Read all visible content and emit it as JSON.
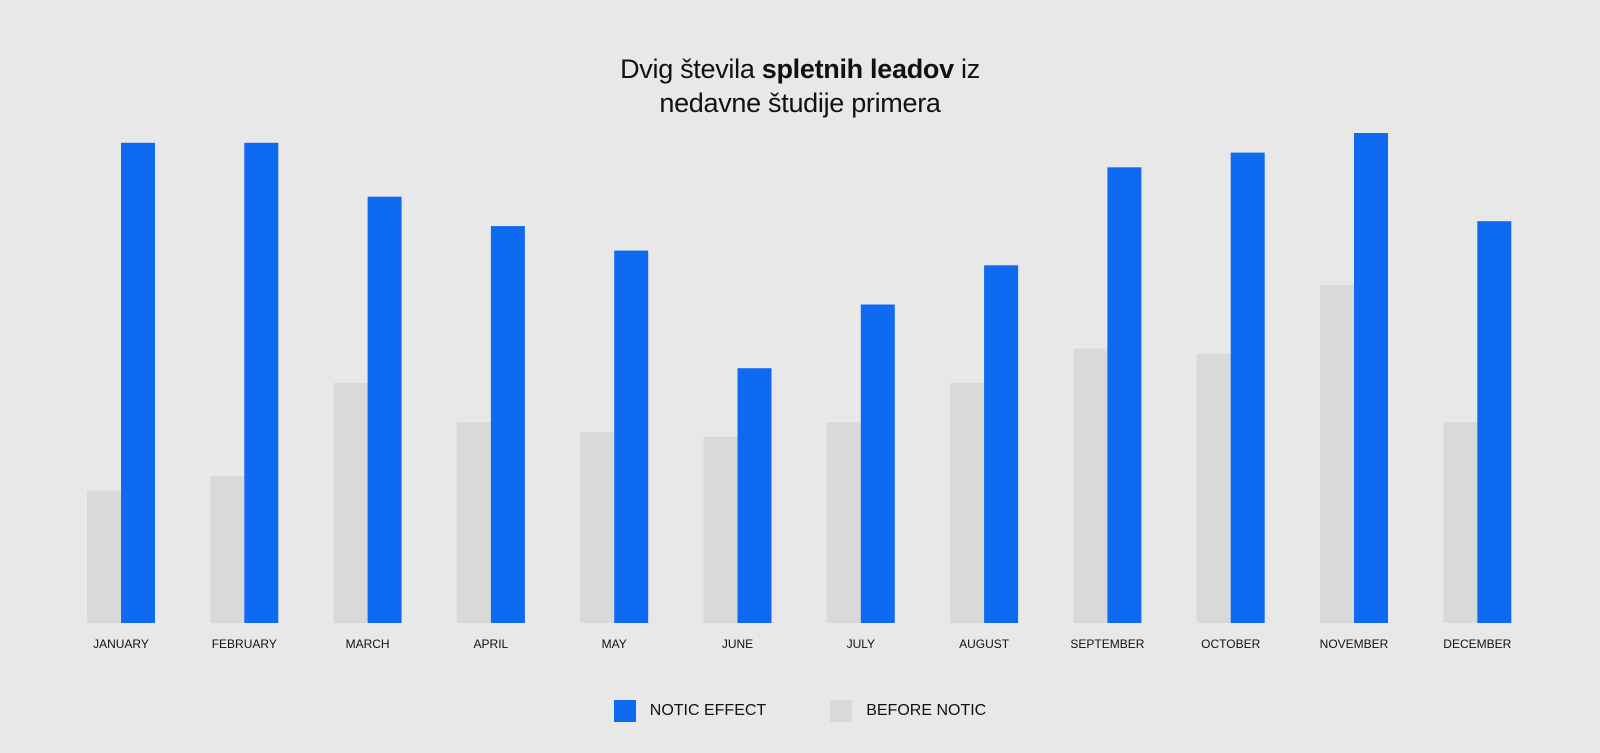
{
  "title": {
    "part1": "Dvig števila ",
    "bold": "spletnih leadov",
    "part2": " iz",
    "line2": "nedavne študije primera"
  },
  "colors": {
    "after": "#0f6af2",
    "before": "#d9d9d9",
    "background": "#e8e8e8"
  },
  "legend": {
    "after_label": "NOTIC EFFECT",
    "before_label": "BEFORE NOTIC"
  },
  "chart_data": {
    "type": "bar",
    "title": "Dvig števila spletnih leadov iz nedavne študije primera",
    "categories": [
      "JANUARY",
      "FEBRUARY",
      "MARCH",
      "APRIL",
      "MAY",
      "JUNE",
      "JULY",
      "AUGUST",
      "SEPTEMBER",
      "OCTOBER",
      "NOVEMBER",
      "DECEMBER"
    ],
    "series": [
      {
        "name": "BEFORE NOTIC",
        "values": [
          27,
          30,
          49,
          41,
          39,
          38,
          41,
          49,
          56,
          55,
          69,
          41
        ]
      },
      {
        "name": "NOTIC EFFECT",
        "values": [
          98,
          98,
          87,
          81,
          76,
          52,
          65,
          73,
          93,
          96,
          100,
          82
        ]
      }
    ],
    "ylim": [
      0,
      100
    ],
    "xlabel": "",
    "ylabel": "",
    "grid": false,
    "legend_position": "bottom"
  }
}
